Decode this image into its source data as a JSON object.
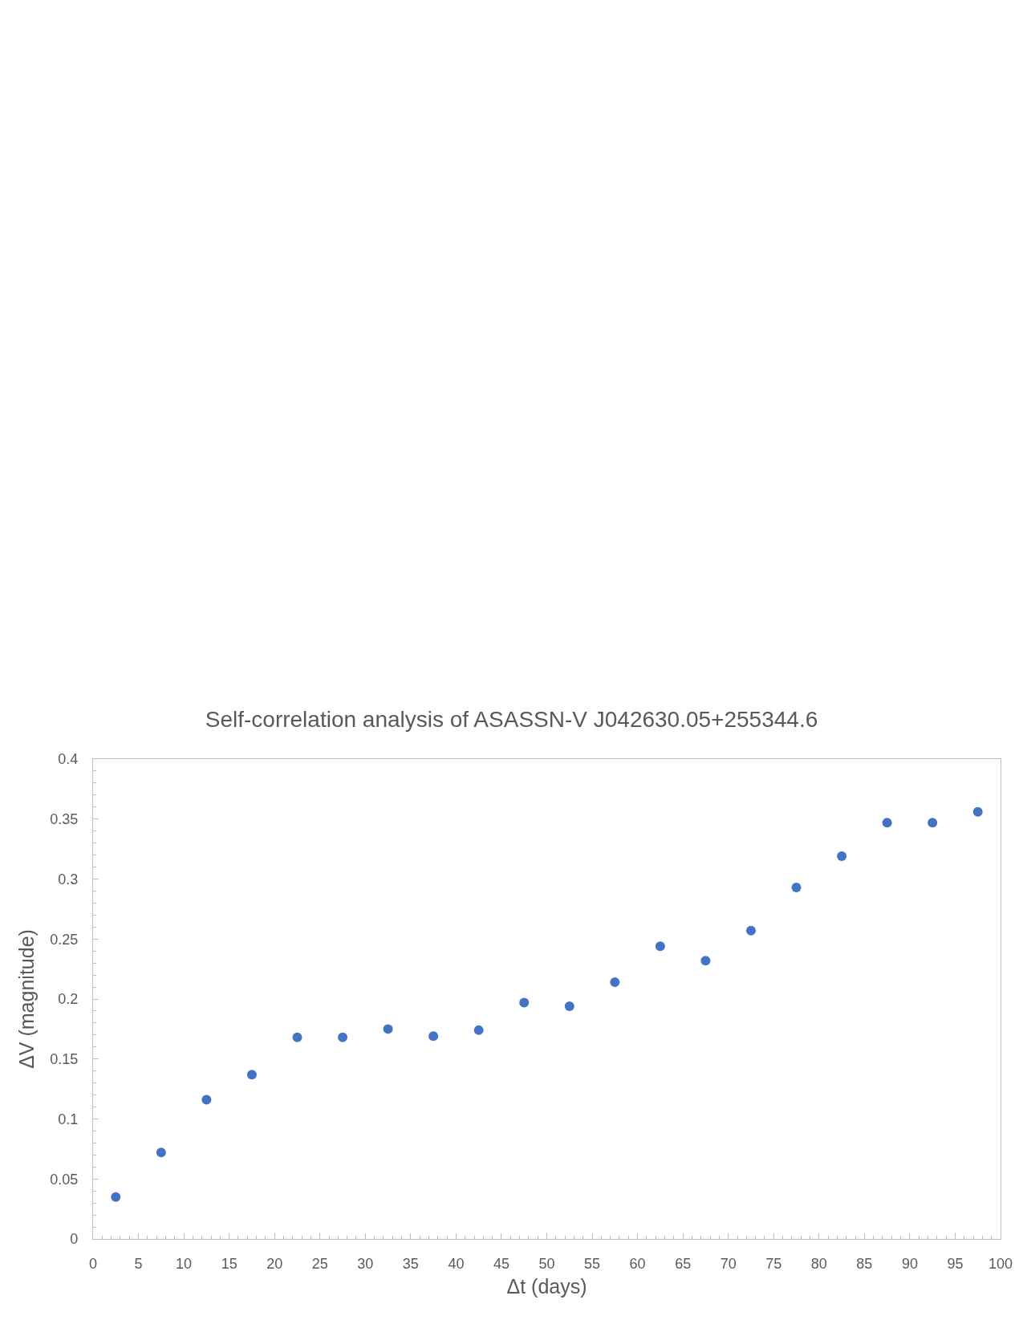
{
  "chart_data": {
    "type": "scatter",
    "title": "Self-correlation analysis of ASASSN-V J042630.05+255344.6",
    "xlabel": "Δt (days)",
    "ylabel": "ΔV (magnitude)",
    "x": [
      2.5,
      7.5,
      12.5,
      17.5,
      22.5,
      27.5,
      32.5,
      37.5,
      42.5,
      47.5,
      52.5,
      57.5,
      62.5,
      67.5,
      72.5,
      77.5,
      82.5,
      87.5,
      92.5,
      97.5
    ],
    "values": [
      0.035,
      0.072,
      0.116,
      0.137,
      0.168,
      0.168,
      0.175,
      0.169,
      0.174,
      0.197,
      0.194,
      0.214,
      0.244,
      0.232,
      0.257,
      0.293,
      0.319,
      0.347,
      0.347,
      0.356
    ],
    "color": "#4472c4",
    "marker": "circle",
    "xlim": [
      0,
      100
    ],
    "ylim": [
      0,
      0.4
    ],
    "xticks": [
      0,
      {
        "value": 1,
        "label": null
      },
      {
        "value": 2,
        "label": null
      },
      {
        "value": 3,
        "label": null
      },
      {
        "value": 4,
        "label": null
      },
      5,
      {
        "value": 6,
        "label": null
      },
      {
        "value": 7,
        "label": null
      },
      {
        "value": 8,
        "label": null
      },
      {
        "value": 9,
        "label": null
      },
      10,
      {
        "value": 11,
        "label": null
      },
      {
        "value": 12,
        "label": null
      },
      {
        "value": 13,
        "label": null
      },
      {
        "value": 14,
        "label": null
      },
      15,
      {
        "value": 16,
        "label": null
      },
      {
        "value": 17,
        "label": null
      },
      {
        "value": 18,
        "label": null
      },
      {
        "value": 19,
        "label": null
      },
      20,
      {
        "value": 21,
        "label": null
      },
      {
        "value": 22,
        "label": null
      },
      {
        "value": 23,
        "label": null
      },
      {
        "value": 24,
        "label": null
      },
      25,
      {
        "value": 26,
        "label": null
      },
      {
        "value": 27,
        "label": null
      },
      {
        "value": 28,
        "label": null
      },
      {
        "value": 29,
        "label": null
      },
      30,
      {
        "value": 31,
        "label": null
      },
      {
        "value": 32,
        "label": null
      },
      {
        "value": 33,
        "label": null
      },
      {
        "value": 34,
        "label": null
      },
      35,
      {
        "value": 36,
        "label": null
      },
      {
        "value": 37,
        "label": null
      },
      {
        "value": 38,
        "label": null
      },
      {
        "value": 39,
        "label": null
      },
      40,
      {
        "value": 41,
        "label": null
      },
      {
        "value": 42,
        "label": null
      },
      {
        "value": 43,
        "label": null
      },
      {
        "value": 44,
        "label": null
      },
      45,
      {
        "value": 46,
        "label": null
      },
      {
        "value": 47,
        "label": null
      },
      {
        "value": 48,
        "label": null
      },
      {
        "value": 49,
        "label": null
      },
      50,
      {
        "value": 51,
        "label": null
      },
      {
        "value": 52,
        "label": null
      },
      {
        "value": 53,
        "label": null
      },
      {
        "value": 54,
        "label": null
      },
      55,
      {
        "value": 56,
        "label": null
      },
      {
        "value": 57,
        "label": null
      },
      {
        "value": 58,
        "label": null
      },
      {
        "value": 59,
        "label": null
      },
      60,
      {
        "value": 61,
        "label": null
      },
      {
        "value": 62,
        "label": null
      },
      {
        "value": 63,
        "label": null
      },
      {
        "value": 64,
        "label": null
      },
      65,
      {
        "value": 66,
        "label": null
      },
      {
        "value": 67,
        "label": null
      },
      {
        "value": 68,
        "label": null
      },
      {
        "value": 69,
        "label": null
      },
      70,
      {
        "value": 71,
        "label": null
      },
      {
        "value": 72,
        "label": null
      },
      {
        "value": 73,
        "label": null
      },
      {
        "value": 74,
        "label": null
      },
      75,
      {
        "value": 76,
        "label": null
      },
      {
        "value": 77,
        "label": null
      },
      {
        "value": 78,
        "label": null
      },
      {
        "value": 79,
        "label": null
      },
      80,
      {
        "value": 81,
        "label": null
      },
      {
        "value": 82,
        "label": null
      },
      {
        "value": 83,
        "label": null
      },
      {
        "value": 84,
        "label": null
      },
      85,
      {
        "value": 86,
        "label": null
      },
      {
        "value": 87,
        "label": null
      },
      {
        "value": 88,
        "label": null
      },
      {
        "value": 89,
        "label": null
      },
      90,
      {
        "value": 91,
        "label": null
      },
      {
        "value": 92,
        "label": null
      },
      {
        "value": 93,
        "label": null
      },
      {
        "value": 94,
        "label": null
      },
      95,
      {
        "value": 96,
        "label": null
      },
      {
        "value": 97,
        "label": null
      },
      {
        "value": 98,
        "label": null
      },
      {
        "value": 99,
        "label": null
      },
      100
    ],
    "yticks": [
      0,
      {
        "value": 0.01,
        "label": null
      },
      {
        "value": 0.02,
        "label": null
      },
      {
        "value": 0.03,
        "label": null
      },
      {
        "value": 0.04,
        "label": null
      },
      0.05,
      {
        "value": 0.06,
        "label": null
      },
      {
        "value": 0.07,
        "label": null
      },
      {
        "value": 0.08,
        "label": null
      },
      {
        "value": 0.09,
        "label": null
      },
      0.1,
      {
        "value": 0.11,
        "label": null
      },
      {
        "value": 0.12,
        "label": null
      },
      {
        "value": 0.13,
        "label": null
      },
      {
        "value": 0.14,
        "label": null
      },
      0.15,
      {
        "value": 0.16,
        "label": null
      },
      {
        "value": 0.17,
        "label": null
      },
      {
        "value": 0.18,
        "label": null
      },
      {
        "value": 0.19,
        "label": null
      },
      0.2,
      {
        "value": 0.21,
        "label": null
      },
      {
        "value": 0.22,
        "label": null
      },
      {
        "value": 0.23,
        "label": null
      },
      {
        "value": 0.24,
        "label": null
      },
      0.25,
      {
        "value": 0.26,
        "label": null
      },
      {
        "value": 0.27,
        "label": null
      },
      {
        "value": 0.28,
        "label": null
      },
      {
        "value": 0.29,
        "label": null
      },
      0.3,
      {
        "value": 0.31,
        "label": null
      },
      {
        "value": 0.32,
        "label": null
      },
      {
        "value": 0.33,
        "label": null
      },
      {
        "value": 0.34,
        "label": null
      },
      0.35,
      {
        "value": 0.36,
        "label": null
      },
      {
        "value": 0.37,
        "label": null
      },
      {
        "value": 0.38,
        "label": null
      },
      {
        "value": 0.39,
        "label": null
      },
      0.4
    ]
  }
}
